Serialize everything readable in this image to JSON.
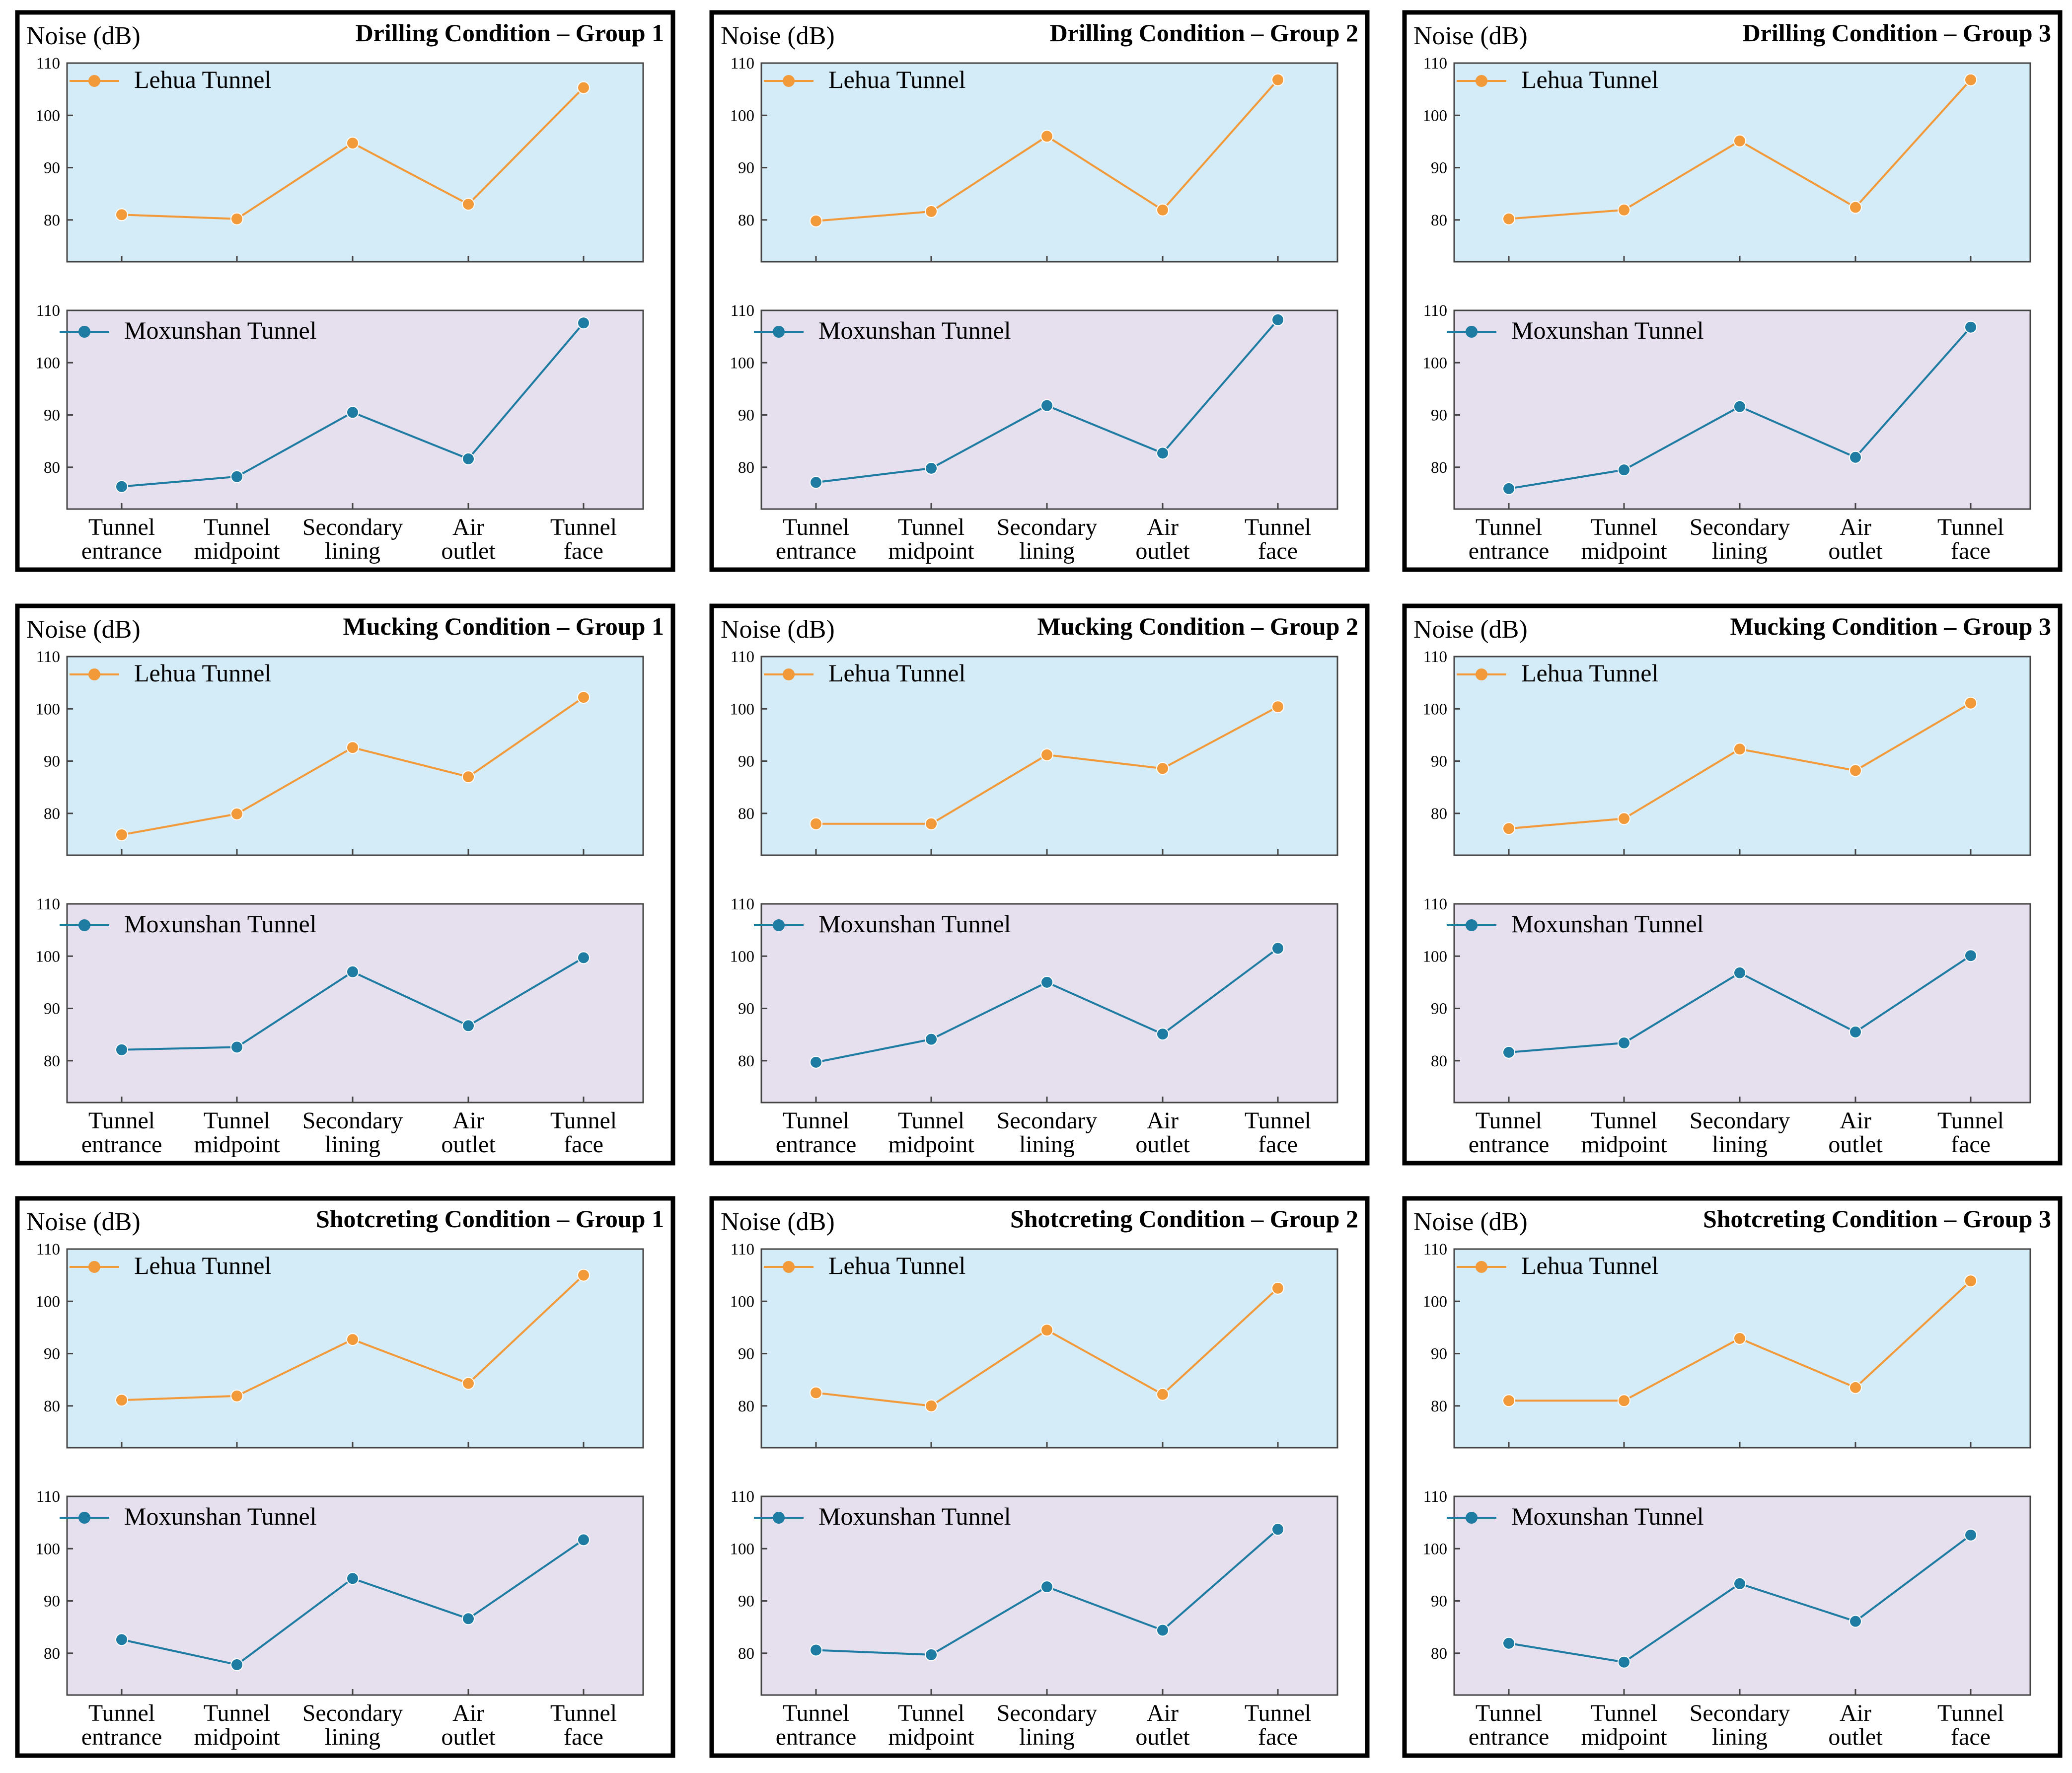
{
  "page": {
    "y_axis_label": "Noise (dB)",
    "categories": [
      [
        "Tunnel",
        "entrance"
      ],
      [
        "Tunnel",
        "midpoint"
      ],
      [
        "Secondary",
        "lining"
      ],
      [
        "Air",
        "outlet"
      ],
      [
        "Tunnel",
        "face"
      ]
    ],
    "series_names": {
      "lehua": "Lehua Tunnel",
      "moxunshan": "Moxunshan Tunnel"
    },
    "colors": {
      "lehua_line": "#F29A3A",
      "moxunshan_line": "#1E7BA1",
      "lehua_bg": "#D4EBF8",
      "moxunshan_bg": "#E6DFEE",
      "frame": "#000000"
    },
    "y_ticks": [
      80,
      90,
      100,
      110
    ]
  },
  "chart_data": [
    {
      "type": "line",
      "title": "Drilling Condition – Group 1",
      "ylabel": "Noise (dB)",
      "categories": [
        "Tunnel entrance",
        "Tunnel midpoint",
        "Secondary lining",
        "Air outlet",
        "Tunnel face"
      ],
      "ylim": [
        72,
        110
      ],
      "series": [
        {
          "name": "Lehua Tunnel",
          "values": [
            81.0,
            80.2,
            94.7,
            83.0,
            105.3
          ]
        },
        {
          "name": "Moxunshan Tunnel",
          "values": [
            76.3,
            78.2,
            90.5,
            81.6,
            107.6
          ]
        }
      ]
    },
    {
      "type": "line",
      "title": "Drilling Condition – Group 2",
      "ylabel": "Noise (dB)",
      "categories": [
        "Tunnel entrance",
        "Tunnel midpoint",
        "Secondary lining",
        "Air outlet",
        "Tunnel face"
      ],
      "ylim": [
        72,
        110
      ],
      "series": [
        {
          "name": "Lehua Tunnel",
          "values": [
            79.8,
            81.6,
            96.0,
            81.9,
            106.8
          ]
        },
        {
          "name": "Moxunshan Tunnel",
          "values": [
            77.1,
            79.8,
            91.8,
            82.7,
            108.2
          ]
        }
      ]
    },
    {
      "type": "line",
      "title": "Drilling Condition – Group 3",
      "ylabel": "Noise (dB)",
      "categories": [
        "Tunnel entrance",
        "Tunnel midpoint",
        "Secondary lining",
        "Air outlet",
        "Tunnel face"
      ],
      "ylim": [
        72,
        110
      ],
      "series": [
        {
          "name": "Lehua Tunnel",
          "values": [
            80.2,
            81.9,
            95.1,
            82.4,
            106.8
          ]
        },
        {
          "name": "Moxunshan Tunnel",
          "values": [
            75.9,
            79.5,
            91.6,
            81.9,
            106.8
          ]
        }
      ]
    },
    {
      "type": "line",
      "title": "Mucking Condition – Group 1",
      "ylabel": "Noise (dB)",
      "categories": [
        "Tunnel entrance",
        "Tunnel midpoint",
        "Secondary lining",
        "Air outlet",
        "Tunnel face"
      ],
      "ylim": [
        72,
        110
      ],
      "series": [
        {
          "name": "Lehua Tunnel",
          "values": [
            75.9,
            79.9,
            92.6,
            87.0,
            102.2
          ]
        },
        {
          "name": "Moxunshan Tunnel",
          "values": [
            82.1,
            82.6,
            97.0,
            86.7,
            99.7
          ]
        }
      ]
    },
    {
      "type": "line",
      "title": "Mucking Condition – Group 2",
      "ylabel": "Noise (dB)",
      "categories": [
        "Tunnel entrance",
        "Tunnel midpoint",
        "Secondary lining",
        "Air outlet",
        "Tunnel face"
      ],
      "ylim": [
        72,
        110
      ],
      "series": [
        {
          "name": "Lehua Tunnel",
          "values": [
            78.0,
            78.0,
            91.2,
            88.6,
            100.4
          ]
        },
        {
          "name": "Moxunshan Tunnel",
          "values": [
            79.7,
            84.1,
            95.0,
            85.1,
            101.5
          ]
        }
      ]
    },
    {
      "type": "line",
      "title": "Mucking Condition – Group 3",
      "ylabel": "Noise (dB)",
      "categories": [
        "Tunnel entrance",
        "Tunnel midpoint",
        "Secondary lining",
        "Air outlet",
        "Tunnel face"
      ],
      "ylim": [
        72,
        110
      ],
      "series": [
        {
          "name": "Lehua Tunnel",
          "values": [
            77.1,
            79.0,
            92.3,
            88.2,
            101.1
          ]
        },
        {
          "name": "Moxunshan Tunnel",
          "values": [
            81.6,
            83.4,
            96.8,
            85.5,
            100.1
          ]
        }
      ]
    },
    {
      "type": "line",
      "title": "Shotcreting Condition – Group 1",
      "ylabel": "Noise (dB)",
      "categories": [
        "Tunnel entrance",
        "Tunnel midpoint",
        "Secondary lining",
        "Air outlet",
        "Tunnel face"
      ],
      "ylim": [
        72,
        110
      ],
      "series": [
        {
          "name": "Lehua Tunnel",
          "values": [
            81.1,
            81.9,
            92.7,
            84.3,
            105.0
          ]
        },
        {
          "name": "Moxunshan Tunnel",
          "values": [
            82.6,
            77.8,
            94.3,
            86.6,
            101.7
          ]
        }
      ]
    },
    {
      "type": "line",
      "title": "Shotcreting Condition – Group 2",
      "ylabel": "Noise (dB)",
      "categories": [
        "Tunnel entrance",
        "Tunnel midpoint",
        "Secondary lining",
        "Air outlet",
        "Tunnel face"
      ],
      "ylim": [
        72,
        110
      ],
      "series": [
        {
          "name": "Lehua Tunnel",
          "values": [
            82.5,
            80.0,
            94.5,
            82.2,
            102.5
          ]
        },
        {
          "name": "Moxunshan Tunnel",
          "values": [
            80.6,
            79.7,
            92.7,
            84.4,
            103.7
          ]
        }
      ]
    },
    {
      "type": "line",
      "title": "Shotcreting Condition – Group 3",
      "ylabel": "Noise (dB)",
      "categories": [
        "Tunnel entrance",
        "Tunnel midpoint",
        "Secondary lining",
        "Air outlet",
        "Tunnel face"
      ],
      "ylim": [
        72,
        110
      ],
      "series": [
        {
          "name": "Lehua Tunnel",
          "values": [
            81.0,
            81.0,
            92.9,
            83.5,
            103.9
          ]
        },
        {
          "name": "Moxunshan Tunnel",
          "values": [
            81.9,
            78.3,
            93.3,
            86.1,
            102.6
          ]
        }
      ]
    }
  ]
}
